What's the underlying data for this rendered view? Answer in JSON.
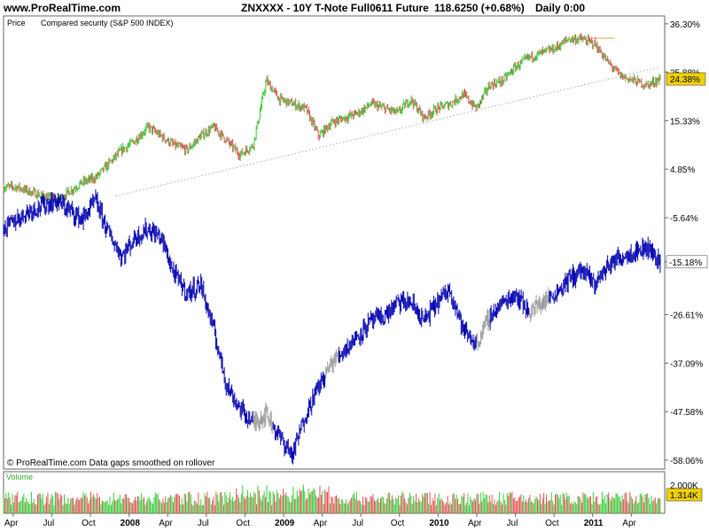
{
  "header": {
    "site": "www.ProRealTime.com",
    "title": "ZNXXXX - 10Y T-Note Full0611 Future",
    "price": "118.6250 (+0.68%)",
    "period": "Daily  0:00"
  },
  "price_pane": {
    "label_price": "Price",
    "label_compared": "Compared security (S&P 500 INDEX)",
    "footer": "© ProRealTime.com  Data gaps smoothed on rollover",
    "last_price_tag": "24.38%",
    "last_compare_tag": "-15.18%"
  },
  "volume_pane": {
    "label": "Volume",
    "tick_top": "2.000K",
    "last_volume_tag": "1.314K"
  },
  "colors": {
    "up": "#33cc33",
    "down": "#e05050",
    "compare": "#0000b0",
    "compare_faded": "#999999",
    "tag_price": "#f0d000",
    "trendline": "#bbbbbb"
  },
  "chart_data": {
    "type": "line",
    "y_axis_ticks": [
      "36.30%",
      "25.88%",
      "15.33%",
      "4.85%",
      "-5.64%",
      "-15.18%",
      "-26.61%",
      "-37.09%",
      "-47.58%",
      "-58.06%"
    ],
    "x_axis_ticks": [
      "Apr",
      "Jul",
      "Oct",
      "2008",
      "Apr",
      "Jul",
      "Oct",
      "2009",
      "Apr",
      "Jul",
      "Oct",
      "2010",
      "Apr",
      "Jul",
      "Oct",
      "2011",
      "Apr"
    ],
    "ylim": [
      -60,
      38
    ],
    "series": [
      {
        "name": "ZNXXXX - 10Y T-Note Full0611 Future",
        "t": [
          0,
          0.02,
          0.04,
          0.06,
          0.08,
          0.1,
          0.12,
          0.14,
          0.16,
          0.18,
          0.2,
          0.22,
          0.24,
          0.26,
          0.28,
          0.3,
          0.32,
          0.34,
          0.36,
          0.38,
          0.4,
          0.42,
          0.44,
          0.46,
          0.48,
          0.5,
          0.52,
          0.54,
          0.56,
          0.58,
          0.6,
          0.62,
          0.64,
          0.66,
          0.68,
          0.7,
          0.72,
          0.74,
          0.76,
          0.78,
          0.8,
          0.82,
          0.84,
          0.86,
          0.88,
          0.9,
          0.92,
          0.94,
          0.96,
          0.98,
          1.0
        ],
        "values": [
          1,
          1,
          0,
          -1,
          -2,
          0,
          2,
          3,
          6,
          9,
          11,
          14,
          12,
          10,
          9,
          12,
          14,
          11,
          8,
          10,
          24,
          20,
          19,
          18,
          12,
          15,
          16,
          17,
          19,
          18,
          17,
          20,
          16,
          18,
          19,
          21,
          18,
          23,
          24,
          27,
          29,
          30,
          31,
          33,
          33,
          32,
          28,
          25,
          24,
          23,
          24.38
        ]
      },
      {
        "name": "S&P 500 INDEX",
        "t": [
          0,
          0.02,
          0.04,
          0.06,
          0.08,
          0.1,
          0.12,
          0.14,
          0.16,
          0.18,
          0.2,
          0.22,
          0.24,
          0.26,
          0.28,
          0.3,
          0.32,
          0.34,
          0.36,
          0.38,
          0.4,
          0.42,
          0.44,
          0.46,
          0.48,
          0.5,
          0.52,
          0.54,
          0.56,
          0.58,
          0.6,
          0.62,
          0.64,
          0.66,
          0.68,
          0.7,
          0.72,
          0.74,
          0.76,
          0.78,
          0.8,
          0.82,
          0.84,
          0.86,
          0.88,
          0.9,
          0.92,
          0.94,
          0.96,
          0.98,
          1.0
        ],
        "values": [
          -8,
          -6,
          -4,
          -3,
          -2,
          -4,
          -6,
          -2,
          -9,
          -14,
          -10,
          -8,
          -10,
          -18,
          -22,
          -20,
          -30,
          -42,
          -47,
          -50,
          -48,
          -53,
          -57,
          -48,
          -42,
          -37,
          -34,
          -31,
          -28,
          -27,
          -24,
          -24,
          -28,
          -24,
          -21,
          -30,
          -33,
          -27,
          -24,
          -22,
          -26,
          -24,
          -22,
          -19,
          -17,
          -20,
          -16,
          -14,
          -13,
          -12,
          -15.18
        ]
      }
    ],
    "volume_ylim": [
      0,
      2000
    ]
  }
}
